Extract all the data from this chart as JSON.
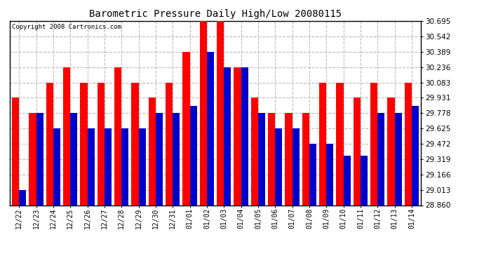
{
  "title": "Barometric Pressure Daily High/Low 20080115",
  "copyright": "Copyright 2008 Cartronics.com",
  "dates": [
    "12/22",
    "12/23",
    "12/24",
    "12/25",
    "12/26",
    "12/27",
    "12/28",
    "12/29",
    "12/30",
    "12/31",
    "01/01",
    "01/02",
    "01/03",
    "01/04",
    "01/05",
    "01/06",
    "01/07",
    "01/08",
    "01/09",
    "01/10",
    "01/11",
    "01/12",
    "01/13",
    "01/14"
  ],
  "highs": [
    29.931,
    29.778,
    30.083,
    30.236,
    30.083,
    30.083,
    30.236,
    30.083,
    29.931,
    30.083,
    30.389,
    30.695,
    30.695,
    30.236,
    29.931,
    29.778,
    29.778,
    29.778,
    30.083,
    30.083,
    29.931,
    30.083,
    29.931,
    30.083
  ],
  "lows": [
    29.013,
    29.778,
    29.625,
    29.778,
    29.625,
    29.625,
    29.625,
    29.625,
    29.778,
    29.778,
    29.85,
    30.389,
    30.236,
    30.236,
    29.778,
    29.625,
    29.625,
    29.472,
    29.472,
    29.35,
    29.35,
    29.778,
    29.778,
    29.85
  ],
  "high_color": "#ff0000",
  "low_color": "#0000cc",
  "bg_color": "#ffffff",
  "plot_bg_color": "#ffffff",
  "grid_color": "#bbbbbb",
  "yticks": [
    28.86,
    29.013,
    29.166,
    29.319,
    29.472,
    29.625,
    29.778,
    29.931,
    30.083,
    30.236,
    30.389,
    30.542,
    30.695
  ],
  "ylim_min": 28.86,
  "ylim_max": 30.695,
  "bar_width": 0.42
}
